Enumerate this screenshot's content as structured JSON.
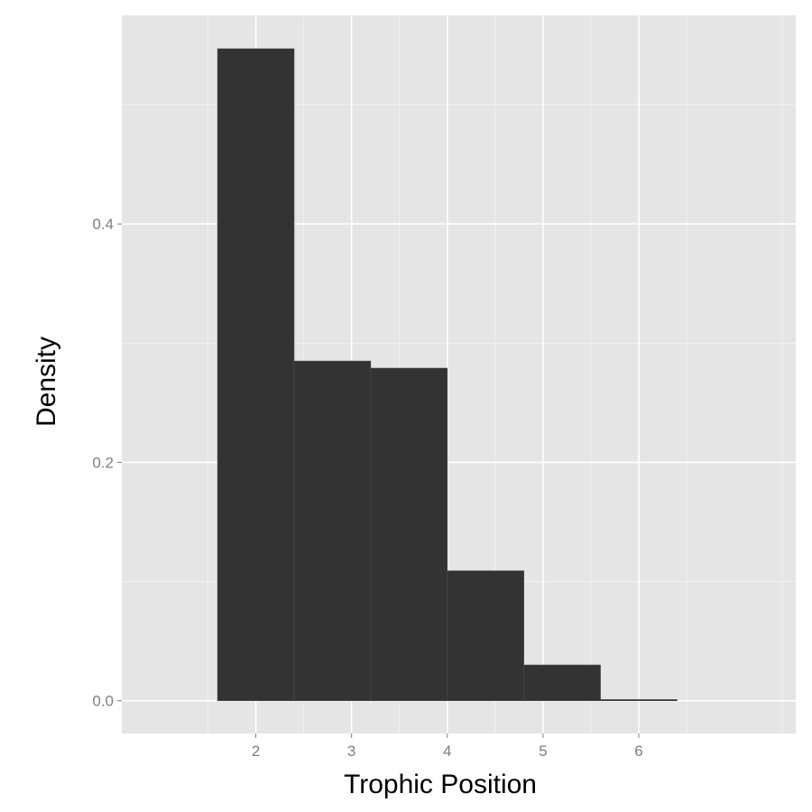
{
  "chart_data": {
    "type": "histogram",
    "title": "",
    "xlabel": "Trophic Position",
    "ylabel": "Density",
    "bins": [
      {
        "x0": 1.6,
        "x1": 2.4,
        "density": 0.547
      },
      {
        "x0": 2.4,
        "x1": 3.2,
        "density": 0.285
      },
      {
        "x0": 3.2,
        "x1": 4.0,
        "density": 0.279
      },
      {
        "x0": 4.0,
        "x1": 4.8,
        "density": 0.109
      },
      {
        "x0": 4.8,
        "x1": 5.6,
        "density": 0.03
      },
      {
        "x0": 5.6,
        "x1": 6.4,
        "density": 0.001
      }
    ],
    "xlim": [
      0.6,
      7.64
    ],
    "ylim": [
      -0.0275,
      0.575
    ],
    "x_ticks": [
      2,
      3,
      4,
      5,
      6
    ],
    "y_ticks": [
      0.0,
      0.2,
      0.4
    ],
    "y_tick_labels": [
      "0.0",
      "0.2",
      "0.4"
    ],
    "grid": true,
    "legend": "none",
    "colors": {
      "panel_background": "#e5e5e5",
      "grid_major": "#ffffff",
      "grid_minor": "#f2f2f2",
      "bar_fill": "#333333",
      "bar_outline": "#4d4d4d",
      "tick_text": "#7f7f7f"
    }
  }
}
